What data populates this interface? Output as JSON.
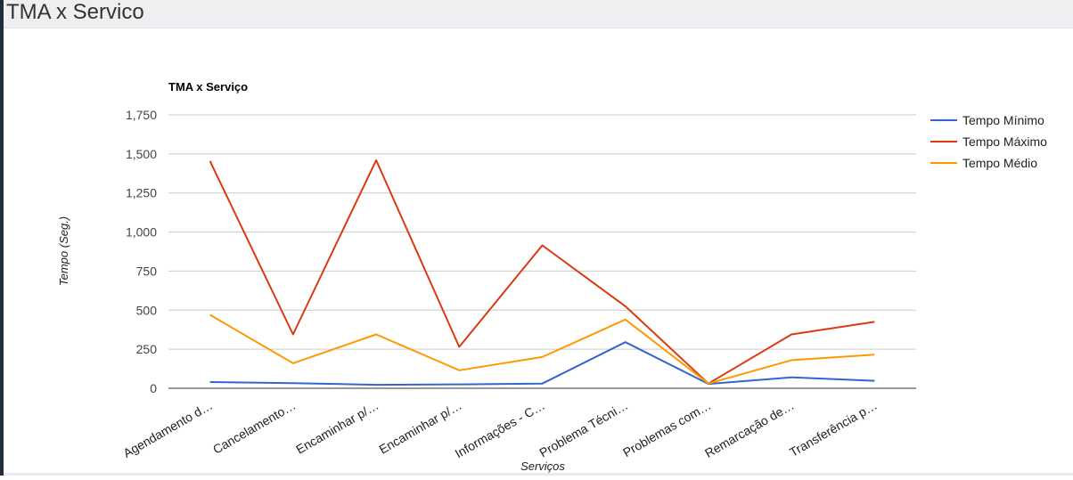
{
  "page": {
    "title": "TMA x Servico"
  },
  "chart_data": {
    "type": "line",
    "title": "TMA x Serviço",
    "xlabel": "Serviços",
    "ylabel": "Tempo (Seg.)",
    "ylim": [
      0,
      1750
    ],
    "yticks": [
      "0",
      "250",
      "500",
      "750",
      "1,000",
      "1,250",
      "1,500",
      "1,750"
    ],
    "grid": true,
    "legend_position": "right",
    "categories": [
      "Agendamento d…",
      "Cancelamento…",
      "Encaminhar p/…",
      "Encaminhar p/…",
      "Informações - C…",
      "Problema Técni…",
      "Problemas com…",
      "Remarcação de…",
      "Transferência p…"
    ],
    "series": [
      {
        "name": "Tempo Mínimo",
        "color": "#3366cc",
        "values": [
          40,
          33,
          22,
          25,
          30,
          295,
          28,
          70,
          48
        ]
      },
      {
        "name": "Tempo Máximo",
        "color": "#dc3912",
        "values": [
          1455,
          345,
          1460,
          265,
          915,
          525,
          30,
          345,
          425
        ]
      },
      {
        "name": "Tempo Médio",
        "color": "#ff9900",
        "values": [
          470,
          160,
          345,
          115,
          200,
          440,
          30,
          180,
          215
        ]
      }
    ]
  }
}
